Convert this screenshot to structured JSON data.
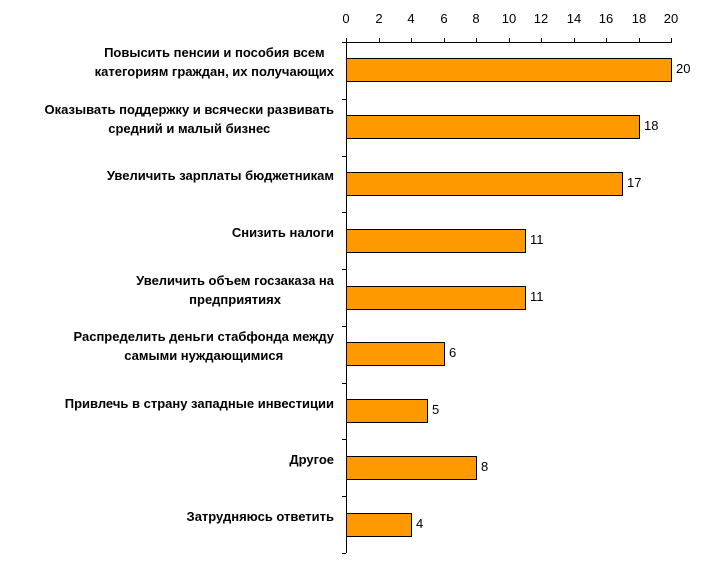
{
  "chart_data": {
    "type": "bar",
    "orientation": "horizontal",
    "title": "",
    "xlabel": "",
    "ylabel": "",
    "xlim": [
      0,
      20
    ],
    "x_ticks": [
      "0",
      "2",
      "4",
      "6",
      "8",
      "10",
      "12",
      "14",
      "16",
      "18",
      "20"
    ],
    "x_axis_position": "top",
    "grid": false,
    "legend": null,
    "bar_color": "#FF9900",
    "categories": [
      "Повысить пенсии и пособия всем категориям граждан, их получающих",
      "Оказывать поддержку и всячески развивать средний и малый бизнес",
      "Увеличить зарплаты бюджетникам",
      "Снизить налоги",
      "Увеличить объем госзаказа на предприятиях",
      "Распределить деньги стабфонда между самыми нуждающимися",
      "Привлечь в страну западные инвестиции",
      "Другое",
      "Затрудняюсь ответить"
    ],
    "values": [
      20,
      18,
      17,
      11,
      11,
      6,
      5,
      8,
      4
    ]
  },
  "labels": [
    {
      "line1": "Повысить пенсии и пособия всем",
      "line2": "категориям граждан, их получающих"
    },
    {
      "line1": "Оказывать поддержку и всячески развивать",
      "line2": "средний и малый бизнес"
    },
    {
      "line1": "Увеличить зарплаты бюджетникам",
      "line2": ""
    },
    {
      "line1": "Снизить налоги",
      "line2": ""
    },
    {
      "line1": "Увеличить объем госзаказа на",
      "line2": "предприятиях"
    },
    {
      "line1": "Распределить деньги стабфонда между",
      "line2": "самыми нуждающимися"
    },
    {
      "line1": "Привлечь в страну западные инвестиции",
      "line2": ""
    },
    {
      "line1": "Другое",
      "line2": ""
    },
    {
      "line1": "Затрудняюсь ответить",
      "line2": ""
    }
  ],
  "value_labels": [
    "20",
    "18",
    "17",
    "11",
    "11",
    "6",
    "5",
    "8",
    "4"
  ]
}
